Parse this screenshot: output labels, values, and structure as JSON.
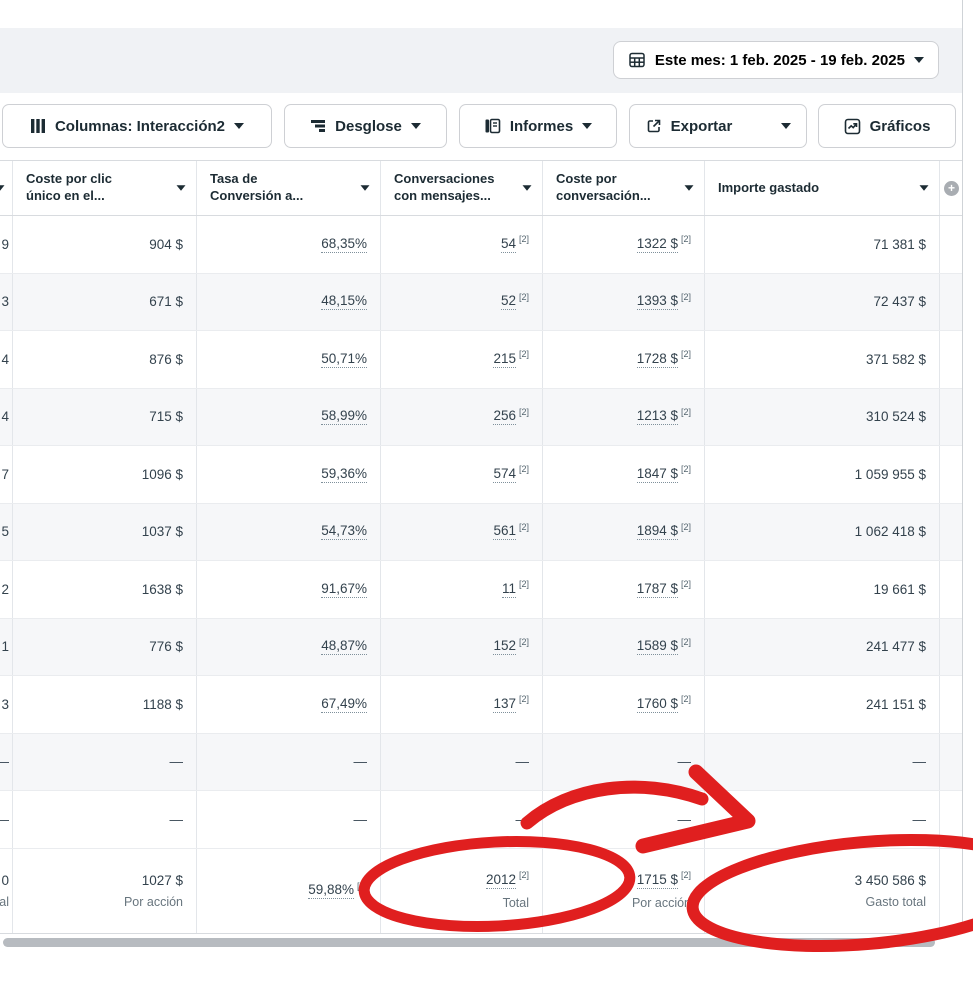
{
  "chrome": {
    "date_range": "Este mes: 1 feb. 2025 - 19 feb. 2025",
    "toolbar": {
      "columns": "Columnas: Interacción2",
      "breakdown": "Desglose",
      "reports": "Informes",
      "export": "Exportar",
      "charts": "Gráficos"
    }
  },
  "table": {
    "columns": [
      {
        "type": "clipped",
        "label1": "",
        "label2": ""
      },
      {
        "type": "sort",
        "label1": "Coste por clic",
        "label2": "único en el..."
      },
      {
        "type": "sort",
        "label1": "Tasa de",
        "label2": "Conversión a..."
      },
      {
        "type": "sort",
        "label1": "Conversaciones",
        "label2": "con mensajes..."
      },
      {
        "type": "sort",
        "label1": "Coste por",
        "label2": "conversación..."
      },
      {
        "type": "sort",
        "label1": "Importe gastado",
        "label2": ""
      },
      {
        "type": "add",
        "label1": "+",
        "label2": ""
      }
    ],
    "rows": [
      {
        "striped": false,
        "cells": [
          {
            "v": "9"
          },
          {
            "v": "904 $"
          },
          {
            "v": "68,35%",
            "dotted": true
          },
          {
            "v": "54",
            "ref": "[2]",
            "dotted": true
          },
          {
            "v": "1322 $",
            "ref": "[2]",
            "dotted": true
          },
          {
            "v": "71 381 $"
          },
          {}
        ]
      },
      {
        "striped": true,
        "cells": [
          {
            "v": "3"
          },
          {
            "v": "671 $"
          },
          {
            "v": "48,15%",
            "dotted": true
          },
          {
            "v": "52",
            "ref": "[2]",
            "dotted": true
          },
          {
            "v": "1393 $",
            "ref": "[2]",
            "dotted": true
          },
          {
            "v": "72 437 $"
          },
          {}
        ]
      },
      {
        "striped": false,
        "cells": [
          {
            "v": "4"
          },
          {
            "v": "876 $"
          },
          {
            "v": "50,71%",
            "dotted": true
          },
          {
            "v": "215",
            "ref": "[2]",
            "dotted": true
          },
          {
            "v": "1728 $",
            "ref": "[2]",
            "dotted": true
          },
          {
            "v": "371 582 $"
          },
          {}
        ]
      },
      {
        "striped": true,
        "cells": [
          {
            "v": "4"
          },
          {
            "v": "715 $"
          },
          {
            "v": "58,99%",
            "dotted": true
          },
          {
            "v": "256",
            "ref": "[2]",
            "dotted": true
          },
          {
            "v": "1213 $",
            "ref": "[2]",
            "dotted": true
          },
          {
            "v": "310 524 $"
          },
          {}
        ]
      },
      {
        "striped": false,
        "cells": [
          {
            "v": "7"
          },
          {
            "v": "1096 $"
          },
          {
            "v": "59,36%",
            "dotted": true
          },
          {
            "v": "574",
            "ref": "[2]",
            "dotted": true
          },
          {
            "v": "1847 $",
            "ref": "[2]",
            "dotted": true
          },
          {
            "v": "1 059 955 $"
          },
          {}
        ]
      },
      {
        "striped": true,
        "cells": [
          {
            "v": "5"
          },
          {
            "v": "1037 $"
          },
          {
            "v": "54,73%",
            "dotted": true
          },
          {
            "v": "561",
            "ref": "[2]",
            "dotted": true
          },
          {
            "v": "1894 $",
            "ref": "[2]",
            "dotted": true
          },
          {
            "v": "1 062 418 $"
          },
          {}
        ]
      },
      {
        "striped": false,
        "cells": [
          {
            "v": "2"
          },
          {
            "v": "1638 $"
          },
          {
            "v": "91,67%",
            "dotted": true
          },
          {
            "v": "11",
            "ref": "[2]",
            "dotted": true
          },
          {
            "v": "1787 $",
            "ref": "[2]",
            "dotted": true
          },
          {
            "v": "19 661 $"
          },
          {}
        ]
      },
      {
        "striped": true,
        "cells": [
          {
            "v": "1"
          },
          {
            "v": "776 $"
          },
          {
            "v": "48,87%",
            "dotted": true
          },
          {
            "v": "152",
            "ref": "[2]",
            "dotted": true
          },
          {
            "v": "1589 $",
            "ref": "[2]",
            "dotted": true
          },
          {
            "v": "241 477 $"
          },
          {}
        ]
      },
      {
        "striped": false,
        "cells": [
          {
            "v": "3"
          },
          {
            "v": "1188 $"
          },
          {
            "v": "67,49%",
            "dotted": true
          },
          {
            "v": "137",
            "ref": "[2]",
            "dotted": true
          },
          {
            "v": "1760 $",
            "ref": "[2]",
            "dotted": true
          },
          {
            "v": "241 151 $"
          },
          {}
        ]
      },
      {
        "striped": true,
        "cells": [
          {
            "v": "—",
            "dash": true
          },
          {
            "v": "—",
            "dash": true
          },
          {
            "v": "—",
            "dash": true
          },
          {
            "v": "—",
            "dash": true
          },
          {
            "v": "—",
            "dash": true
          },
          {
            "v": "—",
            "dash": true
          },
          {}
        ]
      },
      {
        "striped": false,
        "cells": [
          {
            "v": "—",
            "dash": true
          },
          {
            "v": "—",
            "dash": true
          },
          {
            "v": "—",
            "dash": true
          },
          {
            "v": "—",
            "dash": true
          },
          {
            "v": "—",
            "dash": true
          },
          {
            "v": "—",
            "dash": true
          },
          {}
        ]
      }
    ],
    "totals": [
      {
        "v": "0",
        "label": "al"
      },
      {
        "v": "1027 $",
        "label": "Por acción"
      },
      {
        "v": "59,88%",
        "ref": "[2]",
        "dotted": true,
        "label": ""
      },
      {
        "v": "2012",
        "ref": "[2]",
        "dotted": true,
        "label": "Total"
      },
      {
        "v": "1715 $",
        "ref": "[2]",
        "dotted": true,
        "label": "Por acción"
      },
      {
        "v": "3 450 586 $",
        "label": "Gasto total"
      },
      {}
    ]
  },
  "annotations": {
    "color": "#e01f1f"
  }
}
